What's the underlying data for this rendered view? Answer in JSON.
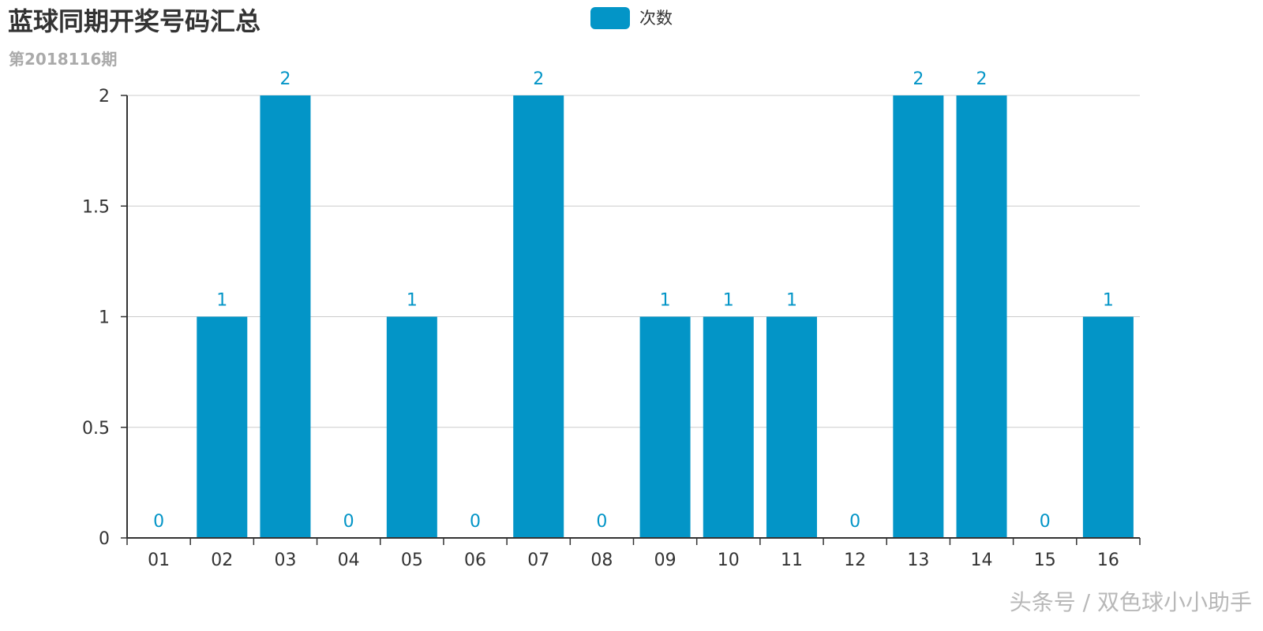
{
  "chart_data": {
    "type": "bar",
    "title": "蓝球同期开奖号码汇总",
    "subtitle": "第2018116期",
    "categories": [
      "01",
      "02",
      "03",
      "04",
      "05",
      "06",
      "07",
      "08",
      "09",
      "10",
      "11",
      "12",
      "13",
      "14",
      "15",
      "16"
    ],
    "series": [
      {
        "name": "次数",
        "values": [
          0,
          1,
          2,
          0,
          1,
          0,
          2,
          0,
          1,
          1,
          1,
          0,
          2,
          2,
          0,
          1
        ],
        "color": "#0395C7"
      }
    ],
    "yticks": [
      "0",
      "0.5",
      "1",
      "1.5",
      "2"
    ],
    "ylim": [
      0,
      2
    ],
    "grid": true,
    "legend_position": "top-center",
    "data_labels": true,
    "label_color": "#0395C7",
    "axis_color": "#333333",
    "grid_color": "#cccccc"
  },
  "watermark": "头条号 / 双色球小小助手"
}
